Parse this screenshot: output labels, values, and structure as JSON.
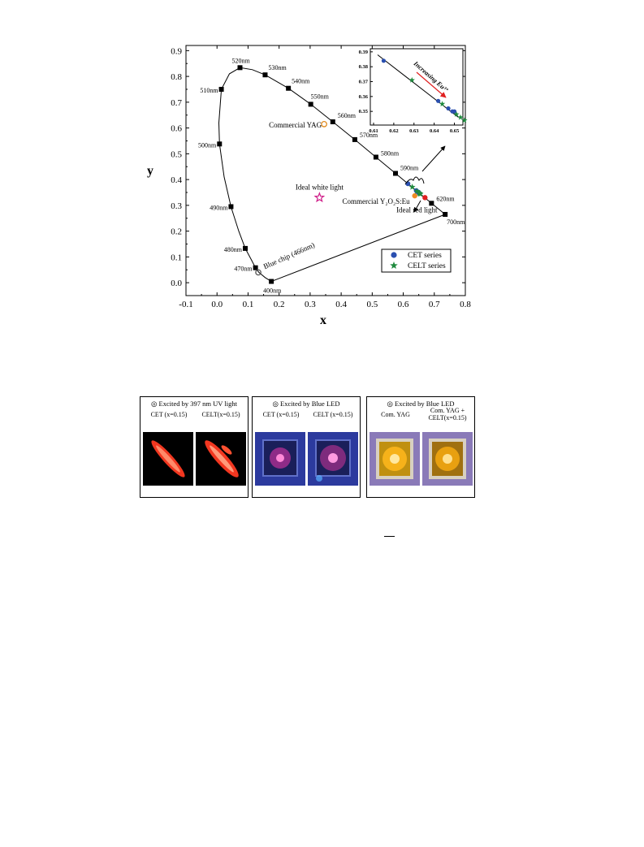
{
  "chart_data": {
    "type": "scatter",
    "xlabel": "x",
    "ylabel": "y",
    "xlim": [
      -0.1,
      0.8
    ],
    "ylim": [
      -0.05,
      0.92
    ],
    "xticks": [
      "-0.1",
      "0.0",
      "0.1",
      "0.2",
      "0.3",
      "0.4",
      "0.5",
      "0.6",
      "0.7",
      "0.8"
    ],
    "yticks": [
      "0.0",
      "0.1",
      "0.2",
      "0.3",
      "0.4",
      "0.5",
      "0.6",
      "0.7",
      "0.8",
      "0.9"
    ],
    "locus": [
      {
        "x": 0.175,
        "y": 0.005
      },
      {
        "x": 0.155,
        "y": 0.02
      },
      {
        "x": 0.135,
        "y": 0.04
      },
      {
        "x": 0.124,
        "y": 0.058
      },
      {
        "x": 0.11,
        "y": 0.09
      },
      {
        "x": 0.091,
        "y": 0.133
      },
      {
        "x": 0.07,
        "y": 0.2
      },
      {
        "x": 0.045,
        "y": 0.295
      },
      {
        "x": 0.023,
        "y": 0.41
      },
      {
        "x": 0.008,
        "y": 0.538
      },
      {
        "x": 0.006,
        "y": 0.62
      },
      {
        "x": 0.014,
        "y": 0.75
      },
      {
        "x": 0.04,
        "y": 0.81
      },
      {
        "x": 0.074,
        "y": 0.834
      },
      {
        "x": 0.114,
        "y": 0.826
      },
      {
        "x": 0.155,
        "y": 0.806
      },
      {
        "x": 0.23,
        "y": 0.754
      },
      {
        "x": 0.302,
        "y": 0.692
      },
      {
        "x": 0.373,
        "y": 0.624
      },
      {
        "x": 0.444,
        "y": 0.555
      },
      {
        "x": 0.512,
        "y": 0.487
      },
      {
        "x": 0.575,
        "y": 0.424
      },
      {
        "x": 0.627,
        "y": 0.372
      },
      {
        "x": 0.691,
        "y": 0.308
      },
      {
        "x": 0.735,
        "y": 0.265
      }
    ],
    "wavelength_points": [
      {
        "label": "400nm",
        "x": 0.175,
        "y": 0.005
      },
      {
        "label": "470nm",
        "x": 0.124,
        "y": 0.058
      },
      {
        "label": "480nm",
        "x": 0.091,
        "y": 0.133
      },
      {
        "label": "490nm",
        "x": 0.045,
        "y": 0.295
      },
      {
        "label": "500nm",
        "x": 0.008,
        "y": 0.538
      },
      {
        "label": "510nm",
        "x": 0.014,
        "y": 0.75
      },
      {
        "label": "520nm",
        "x": 0.074,
        "y": 0.834
      },
      {
        "label": "530nm",
        "x": 0.155,
        "y": 0.806
      },
      {
        "label": "540nm",
        "x": 0.23,
        "y": 0.754
      },
      {
        "label": "550nm",
        "x": 0.302,
        "y": 0.692
      },
      {
        "label": "560nm",
        "x": 0.373,
        "y": 0.624
      },
      {
        "label": "570nm",
        "x": 0.444,
        "y": 0.555
      },
      {
        "label": "580nm",
        "x": 0.512,
        "y": 0.487
      },
      {
        "label": "590nm",
        "x": 0.575,
        "y": 0.424
      },
      {
        "label": "620nm",
        "x": 0.691,
        "y": 0.308
      },
      {
        "label": "700nm",
        "x": 0.735,
        "y": 0.265
      }
    ],
    "series": [
      {
        "name": "CET series",
        "marker": "circle",
        "color": "#2a4fb0",
        "points": [
          {
            "x": 0.615,
            "y": 0.384
          },
          {
            "x": 0.642,
            "y": 0.357
          },
          {
            "x": 0.647,
            "y": 0.352
          },
          {
            "x": 0.649,
            "y": 0.35
          },
          {
            "x": 0.65,
            "y": 0.35
          }
        ]
      },
      {
        "name": "CELT series",
        "marker": "star",
        "color": "#1f8a3e",
        "points": [
          {
            "x": 0.629,
            "y": 0.371
          },
          {
            "x": 0.644,
            "y": 0.355
          },
          {
            "x": 0.651,
            "y": 0.348
          },
          {
            "x": 0.653,
            "y": 0.346
          },
          {
            "x": 0.655,
            "y": 0.344
          }
        ]
      }
    ],
    "special_points": [
      {
        "label": "Commercial YAG",
        "x": 0.345,
        "y": 0.615,
        "marker": "open-circle",
        "color": "#e08a1e"
      },
      {
        "label": "Ideal white light",
        "x": 0.33,
        "y": 0.33,
        "marker": "open-star",
        "color": "#d0208a"
      },
      {
        "label": "Blue chip (466nm)",
        "x": 0.133,
        "y": 0.04,
        "marker": "open-circle",
        "color": "#555555"
      },
      {
        "label": "Commercial Y₂O₂S:Eu",
        "x": 0.637,
        "y": 0.337,
        "marker": "circle",
        "color": "#f08a24"
      },
      {
        "label": "Ideal red light",
        "x": 0.67,
        "y": 0.33,
        "marker": "circle",
        "color": "#e02020"
      }
    ],
    "inset": {
      "xlim": [
        0.61,
        0.653
      ],
      "ylim": [
        0.343,
        0.391
      ],
      "xticks": [
        "0.61",
        "0.62",
        "0.63",
        "0.64",
        "0.65"
      ],
      "yticks": [
        "0.35",
        "0.36",
        "0.37",
        "0.38",
        "0.39"
      ],
      "annotation": "Increasing Eu³⁺",
      "line": [
        {
          "x": 0.612,
          "y": 0.388
        },
        {
          "x": 0.652,
          "y": 0.346
        }
      ]
    },
    "legend": {
      "position": "bottom-right",
      "items": [
        "CET series",
        "CELT series"
      ]
    }
  },
  "panels": [
    {
      "title": "◎ Excited by 397 nm UV light",
      "labels": [
        "CET (x=0.15)",
        "CELT(x=0.15)"
      ]
    },
    {
      "title": "◎ Excited by Blue LED",
      "labels": [
        "CET (x=0.15)",
        "CELT (x=0.15)"
      ]
    },
    {
      "title": "◎ Excited by Blue LED",
      "labels": [
        "Com. YAG",
        "Com. YAG +\nCELT(x=0.15)"
      ]
    }
  ],
  "colors": {
    "cet": "#2a4fb0",
    "celt": "#1f8a3e",
    "arrow": "#e02020",
    "uv_glow": "#ff3a22",
    "led_bg": "#2c3a9e",
    "yag": "#f6b21a"
  }
}
